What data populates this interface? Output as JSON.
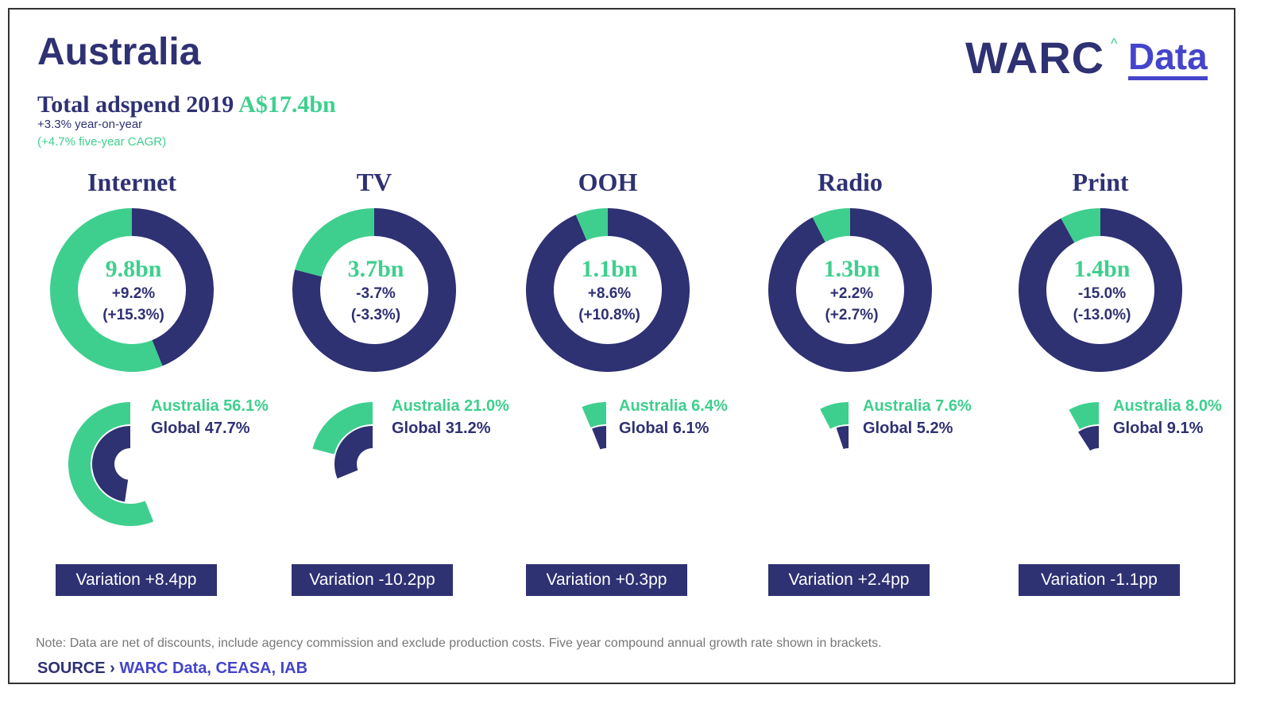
{
  "header": {
    "title": "Australia",
    "subtitle_label": "Total adspend 2019",
    "subtitle_amount": "A$17.4bn",
    "yoy": "+3.3% year-on-year",
    "cagr": "(+4.7% five-year CAGR)"
  },
  "logo": {
    "warc": "WARC",
    "caret": "^",
    "data": "Data"
  },
  "colors": {
    "navy": "#2e3172",
    "green": "#3ecf8e",
    "blue": "#4444cc",
    "note_grey": "#777777"
  },
  "chart_data": {
    "type": "donut",
    "series_names": [
      "Australia",
      "Global"
    ],
    "categories": [
      "Internet",
      "TV",
      "OOH",
      "Radio",
      "Print"
    ],
    "items": [
      {
        "name": "Internet",
        "value": "9.8bn",
        "yoy": "+9.2%",
        "cagr": "(+15.3%)",
        "australia_share": 56.1,
        "global_share": 47.7,
        "australia_label": "Australia 56.1%",
        "global_label": "Global 47.7%",
        "variation": "Variation +8.4pp"
      },
      {
        "name": "TV",
        "value": "3.7bn",
        "yoy": "-3.7%",
        "cagr": "(-3.3%)",
        "australia_share": 21.0,
        "global_share": 31.2,
        "australia_label": "Australia 21.0%",
        "global_label": "Global 31.2%",
        "variation": "Variation -10.2pp"
      },
      {
        "name": "OOH",
        "value": "1.1bn",
        "yoy": "+8.6%",
        "cagr": "(+10.8%)",
        "australia_share": 6.4,
        "global_share": 6.1,
        "australia_label": "Australia 6.4%",
        "global_label": "Global 6.1%",
        "variation": "Variation +0.3pp"
      },
      {
        "name": "Radio",
        "value": "1.3bn",
        "yoy": "+2.2%",
        "cagr": "(+2.7%)",
        "australia_share": 7.6,
        "global_share": 5.2,
        "australia_label": "Australia 7.6%",
        "global_label": "Global 5.2%",
        "variation": "Variation +2.4pp"
      },
      {
        "name": "Print",
        "value": "1.4bn",
        "yoy": "-15.0%",
        "cagr": "(-13.0%)",
        "australia_share": 8.0,
        "global_share": 9.1,
        "australia_label": "Australia 8.0%",
        "global_label": "Global 9.1%",
        "variation": "Variation -1.1pp"
      }
    ]
  },
  "footer": {
    "note": "Note: Data are net of discounts, include agency commission and exclude production costs. Five year compound annual growth rate shown in brackets.",
    "source_label": "SOURCE ›",
    "source_value": "WARC Data, CEASA, IAB"
  }
}
